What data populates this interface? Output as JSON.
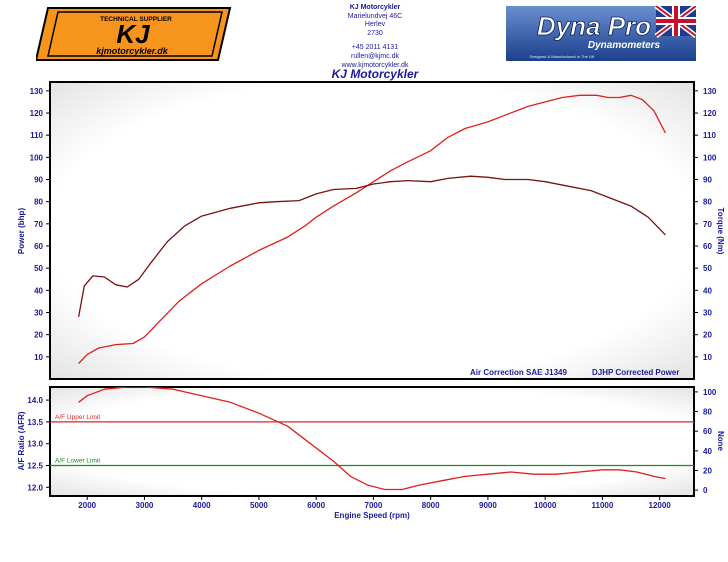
{
  "header": {
    "company": "KJ Motorcykler",
    "address_line1": "Marielundvej 46C",
    "address_line2": "Herlev",
    "address_line3": "2730",
    "phone": "+45 2011 4131",
    "email": "rullen@kjmc.dk",
    "website": "www.kjmotorcykler.dk"
  },
  "logo_left": {
    "top_text": "TECHNICAL SUPPLIER",
    "main_text": "KJ",
    "url_text": "kjmotorcykler.dk",
    "colors": {
      "orange": "#f7941d",
      "black": "#000000"
    }
  },
  "logo_right": {
    "brand": "Dyna Pro",
    "sub": "Dynamometers",
    "tagline": "Designed & Manufactured in The UK",
    "colors": {
      "bg": "#1b3f8b",
      "text": "#ffffff"
    }
  },
  "page_title": "KJ Motorcykler",
  "chart_data": [
    {
      "type": "line",
      "title": "",
      "xlabel": "",
      "ylabel": "Power (bhp)",
      "ylabel_right": "Torque (Nm)",
      "xlim": [
        1350,
        12600
      ],
      "ylim": [
        0,
        134
      ],
      "yticks": [
        10,
        20,
        30,
        40,
        50,
        60,
        70,
        80,
        90,
        100,
        110,
        120,
        130
      ],
      "y2ticks": [
        10,
        20,
        30,
        40,
        50,
        60,
        70,
        80,
        90,
        100,
        110,
        120,
        130
      ],
      "notes": [
        "Air Correction SAE J1349",
        "DJHP Corrected Power"
      ],
      "grid": false,
      "series": [
        {
          "color": "#e0201c",
          "x": [
            1850,
            2000,
            2200,
            2500,
            2800,
            3000,
            3300,
            3600,
            4000,
            4500,
            5000,
            5500,
            5800,
            6000,
            6300,
            6700,
            7000,
            7300,
            7600,
            8000,
            8300,
            8600,
            9000,
            9300,
            9700,
            10000,
            10300,
            10600,
            10900,
            11100,
            11300,
            11500,
            11700,
            11900,
            12100
          ],
          "y": [
            7,
            11,
            14,
            15.5,
            16,
            19,
            27,
            35,
            43,
            51,
            58,
            64,
            69,
            73,
            78,
            84,
            89,
            94,
            98,
            103,
            109,
            113,
            116,
            119,
            123,
            125,
            127,
            128,
            128,
            127,
            127,
            128,
            126,
            121,
            111
          ]
        },
        {
          "color": "#7a1212",
          "x": [
            1850,
            1950,
            2100,
            2300,
            2500,
            2700,
            2900,
            3100,
            3400,
            3700,
            4000,
            4500,
            5000,
            5300,
            5700,
            6000,
            6300,
            6700,
            7000,
            7300,
            7600,
            8000,
            8300,
            8700,
            9000,
            9300,
            9700,
            10000,
            10400,
            10800,
            11200,
            11500,
            11800,
            12100
          ],
          "y": [
            28,
            42,
            46.5,
            46,
            42.5,
            41.5,
            45,
            52,
            62,
            69,
            73.5,
            77,
            79.5,
            80,
            80.5,
            83.5,
            85.5,
            86,
            88,
            89,
            89.5,
            89,
            90.5,
            91.5,
            91,
            90,
            90,
            89,
            87,
            85,
            81,
            78,
            73,
            65
          ]
        }
      ]
    },
    {
      "type": "line",
      "title": "",
      "xlabel": "Engine Speed (rpm)",
      "ylabel": "A/F Ratio (AFR)",
      "ylabel_right": "None",
      "xlim": [
        1350,
        12600
      ],
      "ylim": [
        11.8,
        14.3
      ],
      "yticks": [
        12.0,
        12.5,
        13.0,
        13.5,
        14.0
      ],
      "y2ticks": [
        0,
        20,
        40,
        60,
        80,
        100
      ],
      "xticks": [
        2000,
        3000,
        4000,
        5000,
        6000,
        7000,
        8000,
        9000,
        10000,
        11000,
        12000
      ],
      "limits": [
        {
          "label": "A/F Upper Limit",
          "value": 13.5,
          "color": "#d42a2a"
        },
        {
          "label": "A/F Lower Limit",
          "value": 12.5,
          "color": "#1e8c1e"
        }
      ],
      "series": [
        {
          "color": "#e0201c",
          "x": [
            1850,
            2000,
            2300,
            2700,
            3000,
            3500,
            4000,
            4500,
            5000,
            5500,
            5900,
            6300,
            6600,
            6900,
            7200,
            7500,
            7800,
            8200,
            8600,
            9000,
            9400,
            9800,
            10200,
            10600,
            11000,
            11300,
            11600,
            11900,
            12100
          ],
          "y": [
            13.95,
            14.1,
            14.25,
            14.3,
            14.3,
            14.25,
            14.1,
            13.95,
            13.7,
            13.4,
            13.0,
            12.6,
            12.25,
            12.05,
            11.95,
            11.95,
            12.05,
            12.15,
            12.25,
            12.3,
            12.35,
            12.3,
            12.3,
            12.35,
            12.4,
            12.4,
            12.35,
            12.25,
            12.2
          ]
        }
      ]
    }
  ]
}
